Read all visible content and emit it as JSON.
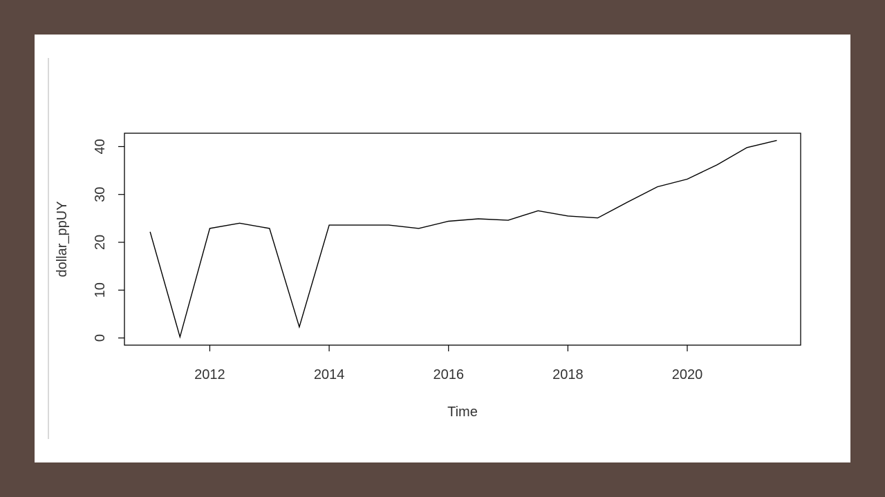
{
  "chart_data": {
    "type": "line",
    "xlabel": "Time",
    "ylabel": "dollar_ppUY",
    "xlim": [
      2010.57,
      2021.9
    ],
    "ylim": [
      -1.5,
      42.8
    ],
    "x_ticks": [
      2012,
      2014,
      2016,
      2018,
      2020
    ],
    "y_ticks": [
      0,
      10,
      20,
      30,
      40
    ],
    "grid": false,
    "series": [
      {
        "x": [
          2011.0,
          2011.5,
          2012.0,
          2012.5,
          2013.0,
          2013.5,
          2014.0,
          2014.5,
          2015.0,
          2015.5,
          2016.0,
          2016.5,
          2017.0,
          2017.5,
          2018.0,
          2018.5,
          2019.0,
          2019.5,
          2020.0,
          2020.5,
          2021.0,
          2021.5
        ],
        "values": [
          22.2,
          0.2,
          22.9,
          24.0,
          22.9,
          2.3,
          23.6,
          23.6,
          23.6,
          22.9,
          24.4,
          24.9,
          24.6,
          26.6,
          25.5,
          25.1,
          28.4,
          31.6,
          33.2,
          36.2,
          39.8,
          41.3
        ],
        "color": "#000000"
      }
    ]
  }
}
